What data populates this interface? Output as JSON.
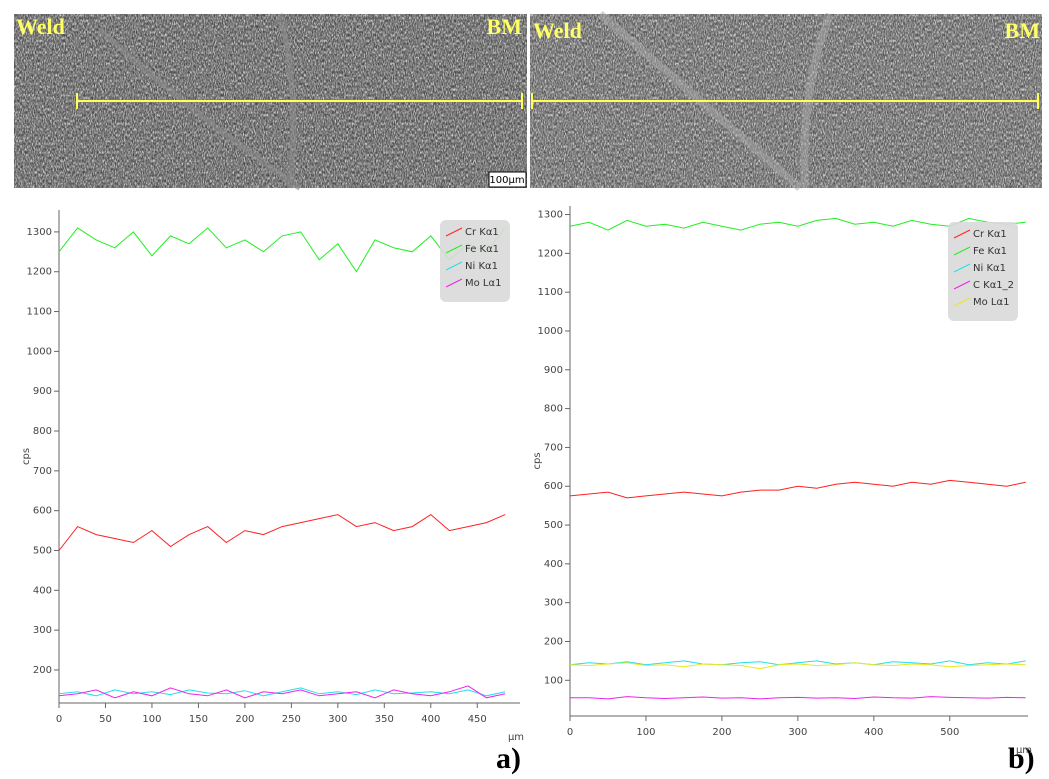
{
  "images": [
    {
      "left_label": "Weld",
      "right_label": "BM",
      "scale_bar": "100µm"
    },
    {
      "left_label": "Weld",
      "right_label": "BM"
    }
  ],
  "panel_labels": [
    "a)",
    "b)"
  ],
  "chart_data": [
    {
      "type": "line",
      "ylabel": "cps",
      "xlabel": "µm",
      "xlim": [
        0,
        496
      ],
      "xticks": [
        0,
        50,
        100,
        150,
        200,
        250,
        300,
        350,
        400,
        450
      ],
      "ylim": [
        117,
        1355
      ],
      "yticks": [
        200,
        300,
        400,
        500,
        600,
        700,
        800,
        900,
        1000,
        1100,
        1200,
        1300
      ],
      "grid": false,
      "legend": "upper right",
      "x": [
        0,
        20,
        40,
        60,
        80,
        100,
        120,
        140,
        160,
        180,
        200,
        220,
        240,
        260,
        280,
        300,
        320,
        340,
        360,
        380,
        400,
        420,
        440,
        460,
        480
      ],
      "series": [
        {
          "name": "Cr Kα1",
          "color": "#ff2020",
          "values": [
            500,
            560,
            540,
            530,
            520,
            550,
            510,
            540,
            560,
            520,
            550,
            540,
            560,
            570,
            580,
            590,
            560,
            570,
            550,
            560,
            590,
            550,
            560,
            570,
            590
          ]
        },
        {
          "name": "Fe Kα1",
          "color": "#22ee22",
          "values": [
            1250,
            1310,
            1280,
            1260,
            1300,
            1240,
            1290,
            1270,
            1310,
            1260,
            1280,
            1250,
            1290,
            1300,
            1230,
            1270,
            1200,
            1280,
            1260,
            1250,
            1290,
            1230,
            1270,
            1250,
            1310
          ]
        },
        {
          "name": "Ni Kα1",
          "color": "#22e0e8",
          "values": [
            140,
            145,
            135,
            150,
            140,
            145,
            138,
            150,
            142,
            140,
            148,
            135,
            145,
            155,
            140,
            145,
            138,
            150,
            140,
            142,
            145,
            140,
            150,
            135,
            145
          ]
        },
        {
          "name": "Mo Lα1",
          "color": "#ee22ee",
          "values": [
            135,
            140,
            150,
            130,
            145,
            135,
            155,
            140,
            135,
            150,
            130,
            145,
            140,
            150,
            135,
            140,
            145,
            130,
            150,
            140,
            135,
            145,
            160,
            130,
            140
          ]
        }
      ]
    },
    {
      "type": "line",
      "ylabel": "cps",
      "xlabel": "µm",
      "xlim": [
        0,
        603
      ],
      "xticks": [
        0,
        100,
        200,
        300,
        400,
        500
      ],
      "ylim": [
        8,
        1322
      ],
      "yticks": [
        100,
        200,
        300,
        400,
        500,
        600,
        700,
        800,
        900,
        1000,
        1100,
        1200,
        1300
      ],
      "grid": false,
      "legend": "upper right",
      "x": [
        0,
        25,
        50,
        75,
        100,
        125,
        150,
        175,
        200,
        225,
        250,
        275,
        300,
        325,
        350,
        375,
        400,
        425,
        450,
        475,
        500,
        525,
        550,
        575,
        600
      ],
      "series": [
        {
          "name": "Cr Kα1",
          "color": "#ff2020",
          "values": [
            575,
            580,
            585,
            570,
            575,
            580,
            585,
            580,
            575,
            585,
            590,
            590,
            600,
            595,
            605,
            610,
            605,
            600,
            610,
            605,
            615,
            610,
            605,
            600,
            610
          ]
        },
        {
          "name": "Fe Kα1",
          "color": "#22ee22",
          "values": [
            1270,
            1280,
            1260,
            1285,
            1270,
            1275,
            1265,
            1280,
            1270,
            1260,
            1275,
            1280,
            1270,
            1285,
            1290,
            1275,
            1280,
            1270,
            1285,
            1275,
            1270,
            1290,
            1280,
            1275,
            1280
          ]
        },
        {
          "name": "Ni Kα1",
          "color": "#22e0e8",
          "values": [
            140,
            145,
            142,
            148,
            140,
            145,
            150,
            142,
            140,
            145,
            148,
            140,
            145,
            150,
            142,
            145,
            140,
            148,
            145,
            142,
            150,
            140,
            145,
            142,
            150
          ]
        },
        {
          "name": "C Kα1_2",
          "color": "#ee22ee",
          "values": [
            55,
            55,
            52,
            58,
            55,
            53,
            55,
            57,
            54,
            55,
            52,
            55,
            56,
            54,
            55,
            53,
            57,
            55,
            54,
            58,
            56,
            55,
            54,
            56,
            55
          ]
        },
        {
          "name": "Mo Lα1",
          "color": "#e8e820",
          "values": [
            140,
            138,
            142,
            145,
            138,
            140,
            135,
            142,
            140,
            138,
            130,
            140,
            142,
            138,
            140,
            145,
            140,
            138,
            142,
            140,
            135,
            138,
            140,
            142,
            140
          ]
        }
      ]
    }
  ]
}
